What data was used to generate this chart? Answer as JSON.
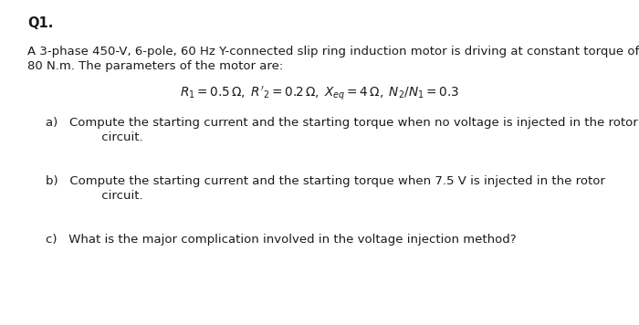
{
  "title": "Q1.",
  "body_line1": "A 3-phase 450-V, 6-pole, 60 Hz Y-connected slip ring induction motor is driving at constant torque of",
  "body_line2": "80 N.m. The parameters of the motor are:",
  "eq_text": "$R_1 = 0.5\\,\\Omega,\\; R'_2 = 0.2\\,\\Omega,\\; X_{eq} = 4\\,\\Omega,\\; N_2/N_1 = 0.3$",
  "a_line1": "a)   Compute the starting current and the starting torque when no voltage is injected in the rotor",
  "a_line2": "         circuit.",
  "b_line1": "b)   Compute the starting current and the starting torque when 7.5 V is injected in the rotor",
  "b_line2": "         circuit.",
  "c_line": "c)   What is the major complication involved in the voltage injection method?",
  "bg_color": "#ffffff",
  "text_color": "#1a1a1a",
  "font_size_title": 10.5,
  "font_size_body": 9.5,
  "font_size_eq": 9.8
}
